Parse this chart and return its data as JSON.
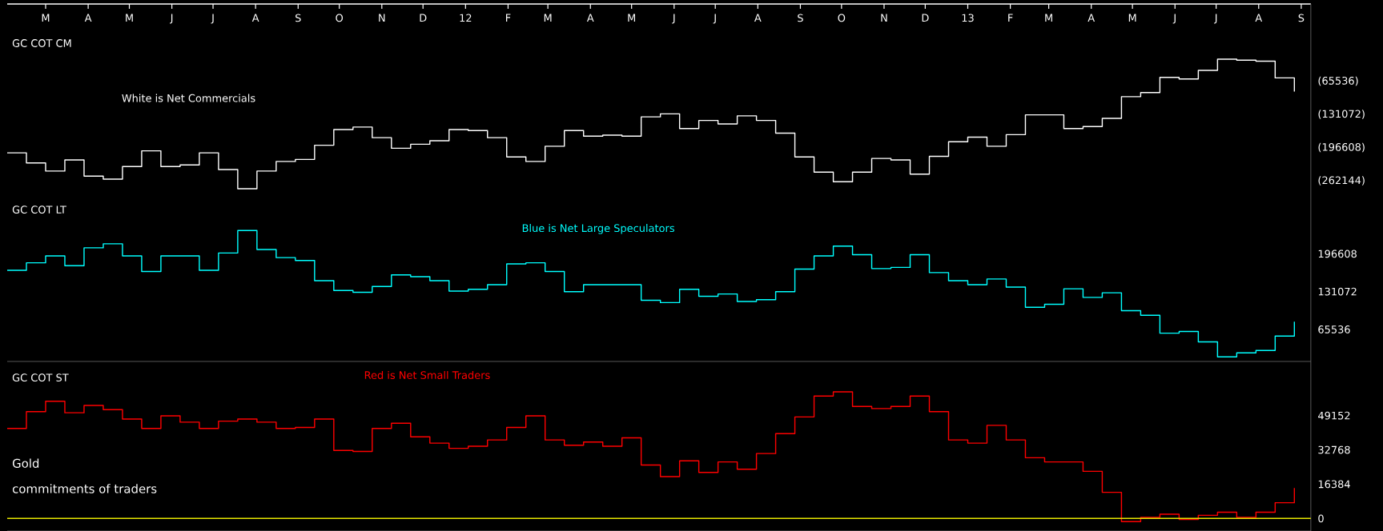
{
  "chart_data": [
    {
      "type": "step",
      "title": "GC COT CM",
      "x": [
        "2011-02-01",
        "2011-02-15",
        "2011-03-01",
        "2011-03-15",
        "2011-03-29",
        "2011-04-12",
        "2011-04-26",
        "2011-05-10",
        "2011-05-24",
        "2011-06-07",
        "2011-06-21",
        "2011-07-05",
        "2011-07-19",
        "2011-08-02",
        "2011-08-16",
        "2011-08-30",
        "2011-09-13",
        "2011-09-27",
        "2011-10-11",
        "2011-10-25",
        "2011-11-08",
        "2011-11-22",
        "2011-12-06",
        "2011-12-20",
        "2012-01-03",
        "2012-01-17",
        "2012-01-31",
        "2012-02-14",
        "2012-02-28",
        "2012-03-13",
        "2012-03-27",
        "2012-04-10",
        "2012-04-24",
        "2012-05-08",
        "2012-05-22",
        "2012-06-05",
        "2012-06-19",
        "2012-07-03",
        "2012-07-17",
        "2012-07-31",
        "2012-08-14",
        "2012-08-28",
        "2012-09-11",
        "2012-09-25",
        "2012-10-09",
        "2012-10-23",
        "2012-11-06",
        "2012-11-20",
        "2012-12-04",
        "2012-12-18",
        "2013-01-01",
        "2013-01-15",
        "2013-01-29",
        "2013-02-12",
        "2013-02-26",
        "2013-03-12",
        "2013-03-26",
        "2013-04-09",
        "2013-04-23",
        "2013-05-07",
        "2013-05-21",
        "2013-06-04",
        "2013-06-18",
        "2013-07-02",
        "2013-07-16",
        "2013-07-30",
        "2013-08-13",
        "2013-08-27"
      ],
      "xlim": [
        "2011-02-01",
        "2013-09-08"
      ],
      "xticks": [
        {
          "value": "2011-03-01",
          "label": "M"
        },
        {
          "value": "2011-04-01",
          "label": "A"
        },
        {
          "value": "2011-05-01",
          "label": "M"
        },
        {
          "value": "2011-06-01",
          "label": "J"
        },
        {
          "value": "2011-07-01",
          "label": "J"
        },
        {
          "value": "2011-08-01",
          "label": "A"
        },
        {
          "value": "2011-09-01",
          "label": "S"
        },
        {
          "value": "2011-10-01",
          "label": "O"
        },
        {
          "value": "2011-11-01",
          "label": "N"
        },
        {
          "value": "2011-12-01",
          "label": "D"
        },
        {
          "value": "2012-01-01",
          "label": "12"
        },
        {
          "value": "2012-02-01",
          "label": "F"
        },
        {
          "value": "2012-03-01",
          "label": "M"
        },
        {
          "value": "2012-04-01",
          "label": "A"
        },
        {
          "value": "2012-05-01",
          "label": "M"
        },
        {
          "value": "2012-06-01",
          "label": "J"
        },
        {
          "value": "2012-07-01",
          "label": "J"
        },
        {
          "value": "2012-08-01",
          "label": "A"
        },
        {
          "value": "2012-09-01",
          "label": "S"
        },
        {
          "value": "2012-10-01",
          "label": "O"
        },
        {
          "value": "2012-11-01",
          "label": "N"
        },
        {
          "value": "2012-12-01",
          "label": "D"
        },
        {
          "value": "2013-01-01",
          "label": "13"
        },
        {
          "value": "2013-02-01",
          "label": "F"
        },
        {
          "value": "2013-03-01",
          "label": "M"
        },
        {
          "value": "2013-04-01",
          "label": "A"
        },
        {
          "value": "2013-05-01",
          "label": "M"
        },
        {
          "value": "2013-06-01",
          "label": "J"
        },
        {
          "value": "2013-07-01",
          "label": "J"
        },
        {
          "value": "2013-08-01",
          "label": "A"
        },
        {
          "value": "2013-09-01",
          "label": "S"
        }
      ],
      "ylim": [
        -300000,
        87000
      ],
      "yticks": [
        {
          "value": -65536,
          "label": "(65536)"
        },
        {
          "value": -131072,
          "label": "(131072)"
        },
        {
          "value": -196608,
          "label": "(196608)"
        },
        {
          "value": -262144,
          "label": "(262144)"
        }
      ],
      "series": [
        {
          "name": "White is Net Commercials",
          "color": "#ffffff",
          "values": [
            -207000,
            -227000,
            -243000,
            -221000,
            -253000,
            -259000,
            -234000,
            -203000,
            -234000,
            -231000,
            -207000,
            -240000,
            -278000,
            -243000,
            -224000,
            -220000,
            -192000,
            -161000,
            -156000,
            -177000,
            -198000,
            -190000,
            -183000,
            -161000,
            -163000,
            -177000,
            -215000,
            -224000,
            -194000,
            -163000,
            -174000,
            -172000,
            -174000,
            -136000,
            -130000,
            -159000,
            -143000,
            -150000,
            -134000,
            -143000,
            -168000,
            -215000,
            -245000,
            -264000,
            -245000,
            -218000,
            -221000,
            -249000,
            -214000,
            -185000,
            -176000,
            -194000,
            -171000,
            -132000,
            -132000,
            -159000,
            -155000,
            -139000,
            -96000,
            -88000,
            -58000,
            -61000,
            -44000,
            -22000,
            -24000,
            -26000,
            -59000,
            -86000
          ]
        }
      ]
    },
    {
      "type": "step",
      "title": "GC COT LT",
      "x": [
        "2011-02-01",
        "2011-02-15",
        "2011-03-01",
        "2011-03-15",
        "2011-03-29",
        "2011-04-12",
        "2011-04-26",
        "2011-05-10",
        "2011-05-24",
        "2011-06-07",
        "2011-06-21",
        "2011-07-05",
        "2011-07-19",
        "2011-08-02",
        "2011-08-16",
        "2011-08-30",
        "2011-09-13",
        "2011-09-27",
        "2011-10-11",
        "2011-10-25",
        "2011-11-08",
        "2011-11-22",
        "2011-12-06",
        "2011-12-20",
        "2012-01-03",
        "2012-01-17",
        "2012-01-31",
        "2012-02-14",
        "2012-02-28",
        "2012-03-13",
        "2012-03-27",
        "2012-04-10",
        "2012-04-24",
        "2012-05-08",
        "2012-05-22",
        "2012-06-05",
        "2012-06-19",
        "2012-07-03",
        "2012-07-17",
        "2012-07-31",
        "2012-08-14",
        "2012-08-28",
        "2012-09-11",
        "2012-09-25",
        "2012-10-09",
        "2012-10-23",
        "2012-11-06",
        "2012-11-20",
        "2012-12-04",
        "2012-12-18",
        "2013-01-01",
        "2013-01-15",
        "2013-01-29",
        "2013-02-12",
        "2013-02-26",
        "2013-03-12",
        "2013-03-26",
        "2013-04-09",
        "2013-04-23",
        "2013-05-07",
        "2013-05-21",
        "2013-06-04",
        "2013-06-18",
        "2013-07-02",
        "2013-07-16",
        "2013-07-30",
        "2013-08-13",
        "2013-08-27"
      ],
      "xlim": [
        "2011-02-01",
        "2013-09-08"
      ],
      "ylim": [
        10000,
        290000
      ],
      "yticks": [
        196608,
        131072,
        65536
      ],
      "tick_labels": "y",
      "series": [
        {
          "name": "Blue is Net Large Speculators",
          "color": "#00ffff",
          "values": [
            168000,
            181000,
            193000,
            176000,
            207000,
            214000,
            193000,
            166000,
            193000,
            193000,
            168000,
            198000,
            237000,
            204000,
            190000,
            185000,
            150000,
            133000,
            130000,
            140000,
            160000,
            157000,
            150000,
            132000,
            135000,
            143000,
            179000,
            181000,
            166000,
            131000,
            143000,
            143000,
            143000,
            116000,
            112000,
            135000,
            123000,
            127000,
            114000,
            117000,
            131000,
            170000,
            193000,
            210000,
            195000,
            171000,
            173000,
            195000,
            164000,
            150000,
            143000,
            153000,
            139000,
            104000,
            109000,
            136000,
            121000,
            129000,
            98000,
            90000,
            59000,
            62000,
            44000,
            18000,
            25000,
            29000,
            54000,
            79000
          ]
        }
      ]
    },
    {
      "type": "step",
      "title": "GC COT ST",
      "x": [
        "2011-02-01",
        "2011-02-15",
        "2011-03-01",
        "2011-03-15",
        "2011-03-29",
        "2011-04-12",
        "2011-04-26",
        "2011-05-10",
        "2011-05-24",
        "2011-06-07",
        "2011-06-21",
        "2011-07-05",
        "2011-07-19",
        "2011-08-02",
        "2011-08-16",
        "2011-08-30",
        "2011-09-13",
        "2011-09-27",
        "2011-10-11",
        "2011-10-25",
        "2011-11-08",
        "2011-11-22",
        "2011-12-06",
        "2011-12-20",
        "2012-01-03",
        "2012-01-17",
        "2012-01-31",
        "2012-02-14",
        "2012-02-28",
        "2012-03-13",
        "2012-03-27",
        "2012-04-10",
        "2012-04-24",
        "2012-05-08",
        "2012-05-22",
        "2012-06-05",
        "2012-06-19",
        "2012-07-03",
        "2012-07-17",
        "2012-07-31",
        "2012-08-14",
        "2012-08-28",
        "2012-09-11",
        "2012-09-25",
        "2012-10-09",
        "2012-10-23",
        "2012-11-06",
        "2012-11-20",
        "2012-12-04",
        "2012-12-18",
        "2013-01-01",
        "2013-01-15",
        "2013-01-29",
        "2013-02-12",
        "2013-02-26",
        "2013-03-12",
        "2013-03-26",
        "2013-04-09",
        "2013-04-23",
        "2013-05-07",
        "2013-05-21",
        "2013-06-04",
        "2013-06-18",
        "2013-07-02",
        "2013-07-16",
        "2013-07-30",
        "2013-08-13",
        "2013-08-27"
      ],
      "xlim": [
        "2011-02-01",
        "2013-09-08"
      ],
      "ylim": [
        -6000,
        75000
      ],
      "yticks": [
        49152,
        32768,
        16384,
        0
      ],
      "tick_labels": "y",
      "ref_lines": [
        {
          "axis": "y",
          "value": 0,
          "color": "#e6e600"
        }
      ],
      "annotations": [
        "Gold",
        "commitments of traders"
      ],
      "series": [
        {
          "name": "Red is Net Small Traders",
          "color": "#ff0000",
          "values": [
            43000,
            51000,
            56000,
            50500,
            54000,
            52000,
            47500,
            43000,
            49000,
            46000,
            43000,
            46500,
            47500,
            46000,
            43000,
            43500,
            47500,
            32500,
            32000,
            43000,
            45500,
            39000,
            36000,
            33500,
            34500,
            37500,
            43500,
            49000,
            37500,
            35000,
            36500,
            34500,
            38500,
            25500,
            20000,
            27500,
            22000,
            27000,
            23500,
            31000,
            40500,
            48500,
            58500,
            60500,
            53500,
            52500,
            53500,
            58500,
            51000,
            37500,
            36000,
            44500,
            37500,
            29000,
            27000,
            27000,
            22500,
            12500,
            -1500,
            500,
            2000,
            -500,
            1500,
            3000,
            500,
            3000,
            7500,
            14500
          ]
        }
      ]
    }
  ]
}
